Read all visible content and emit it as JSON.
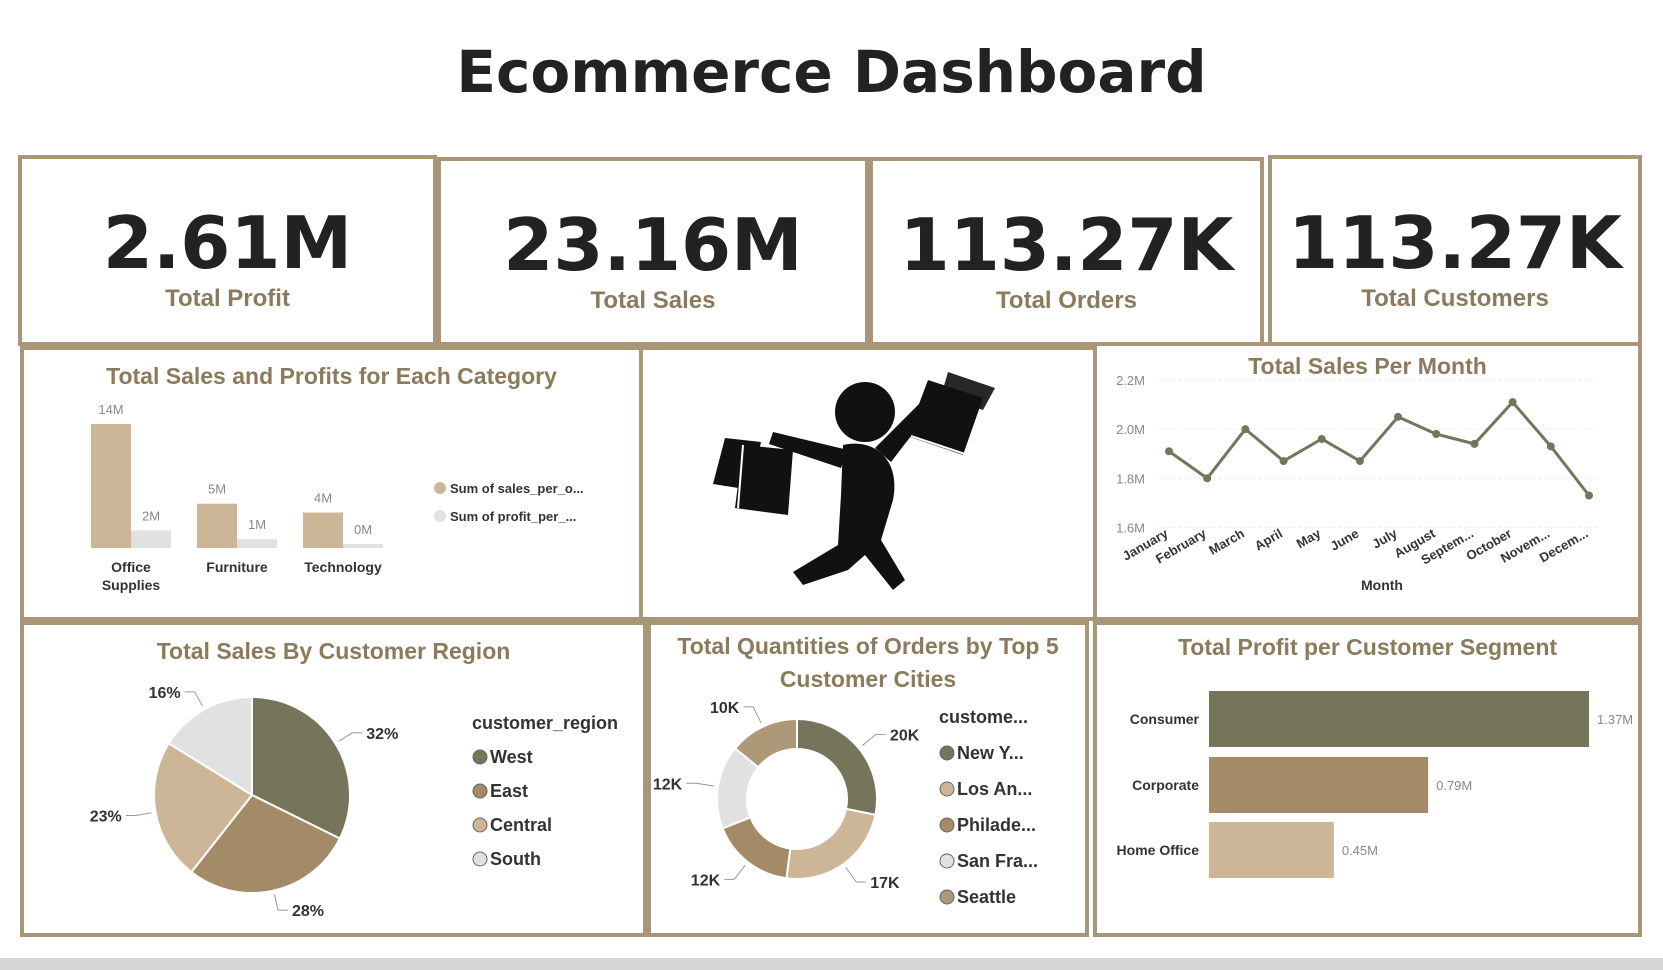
{
  "dashboard": {
    "title": "Ecommerce Dashboard"
  },
  "kpis": [
    {
      "value": "2.61M",
      "label": "Total Profit"
    },
    {
      "value": "23.16M",
      "label": "Total Sales"
    },
    {
      "value": "113.27K",
      "label": "Total Orders"
    },
    {
      "value": "113.27K",
      "label": "Total Customers"
    }
  ],
  "colors": {
    "border": "#a99577",
    "title": "#8b7a5c",
    "olive": "#76745a",
    "tan": "#a38b67",
    "light_tan": "#cdb597",
    "light_gray": "#e1e1e1",
    "mid_tan": "#ad9878"
  },
  "icon": {
    "name": "shopper-with-bags-icon"
  },
  "chart_data": [
    {
      "id": "category",
      "type": "bar",
      "title": "Total Sales and Profits for Each Category",
      "categories": [
        "Office Supplies",
        "Furniture",
        "Technology"
      ],
      "category_lines": [
        [
          "Office",
          "Supplies"
        ],
        [
          "Furniture"
        ],
        [
          "Technology"
        ]
      ],
      "series": [
        {
          "name": "Sum of sales_per_o...",
          "values": [
            14,
            5,
            4
          ],
          "labels": [
            "14M",
            "5M",
            "4M"
          ],
          "color": "#cdb597"
        },
        {
          "name": "Sum of profit_per_...",
          "values": [
            2,
            1,
            0.4
          ],
          "labels": [
            "2M",
            "1M",
            "0M"
          ],
          "color": "#e1e1e1"
        }
      ],
      "ylim": [
        0,
        14
      ]
    },
    {
      "id": "monthly",
      "type": "line",
      "title": "Total Sales Per Month",
      "xlabel": "Month",
      "x": [
        "January",
        "February",
        "March",
        "April",
        "May",
        "June",
        "July",
        "August",
        "Septem...",
        "October",
        "Novem...",
        "Decem..."
      ],
      "values": [
        1.91,
        1.8,
        2.0,
        1.87,
        1.96,
        1.87,
        2.05,
        1.98,
        1.94,
        2.11,
        1.93,
        1.73
      ],
      "yticks": [
        "2.2M",
        "2.0M",
        "1.8M",
        "1.6M"
      ],
      "ytick_values": [
        2.2,
        2.0,
        1.8,
        1.6
      ],
      "ylim": [
        1.5,
        2.2
      ],
      "color": "#76745a"
    },
    {
      "id": "region",
      "type": "pie",
      "title": "Total Sales By Customer Region",
      "legend_title": "customer_region",
      "labels": [
        "West",
        "East",
        "Central",
        "South"
      ],
      "values": [
        32,
        28,
        23,
        16
      ],
      "value_labels": [
        "32%",
        "28%",
        "23%",
        "16%"
      ],
      "colors": [
        "#76745a",
        "#a38b67",
        "#cdb597",
        "#e1e1e1"
      ]
    },
    {
      "id": "cities",
      "type": "pie",
      "title": "Total Quantities of Orders by Top 5 Customer Cities",
      "title_lines": [
        "Total Quantities of Orders by Top 5",
        "Customer Cities"
      ],
      "legend_title": "custome...",
      "labels": [
        "New Y...",
        "Los An...",
        "Philade...",
        "San Fra...",
        "Seattle"
      ],
      "values": [
        20,
        17,
        12,
        12,
        10
      ],
      "value_labels": [
        "20K",
        "17K",
        "12K",
        "12K",
        "10K"
      ],
      "colors": [
        "#76745a",
        "#cdb597",
        "#a38b67",
        "#e1e1e1",
        "#ad9878"
      ]
    },
    {
      "id": "segment",
      "type": "bar",
      "title": "Total Profit per Customer Segment",
      "categories": [
        "Consumer",
        "Corporate",
        "Home Office"
      ],
      "values": [
        1.37,
        0.79,
        0.45
      ],
      "value_labels": [
        "1.37M",
        "0.79M",
        "0.45M"
      ],
      "colors": [
        "#76745a",
        "#a38b67",
        "#cdb597"
      ],
      "xlim": [
        0,
        1.37
      ]
    }
  ]
}
